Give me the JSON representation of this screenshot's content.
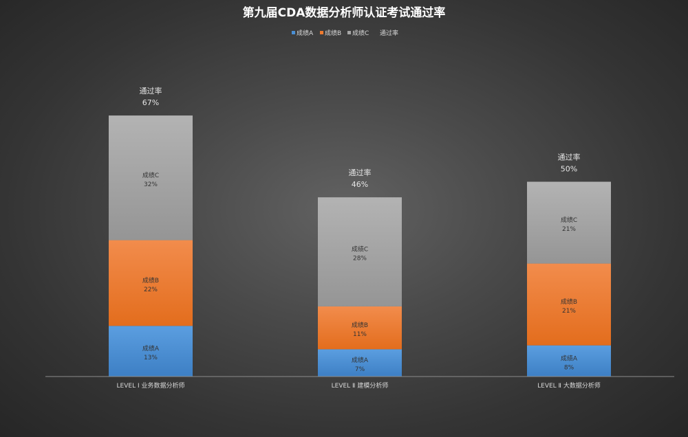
{
  "chart_data": {
    "type": "bar",
    "stacked": true,
    "title": "第九届CDA数据分析师认证考试通过率",
    "categories": [
      "LEVEL Ⅰ 业务数据分析师",
      "LEVEL Ⅱ 建模分析师",
      "LEVEL Ⅱ 大数据分析师"
    ],
    "series": [
      {
        "name": "成绩A",
        "values": [
          13,
          7,
          8
        ],
        "labels": [
          "13%",
          "7%",
          "8%"
        ],
        "color": "#4a8fd4"
      },
      {
        "name": "成绩B",
        "values": [
          22,
          11,
          21
        ],
        "labels": [
          "22%",
          "11%",
          "21%"
        ],
        "color": "#ee7a2e"
      },
      {
        "name": "成绩C",
        "values": [
          32,
          28,
          21
        ],
        "labels": [
          "32%",
          "28%",
          "21%"
        ],
        "color": "#a6a6a6"
      }
    ],
    "totals": {
      "name": "通过率",
      "values": [
        67,
        46,
        50
      ],
      "labels": [
        "67%",
        "46%",
        "50%"
      ]
    },
    "ylim": [
      0,
      70
    ],
    "grid": false,
    "legend": "top"
  }
}
